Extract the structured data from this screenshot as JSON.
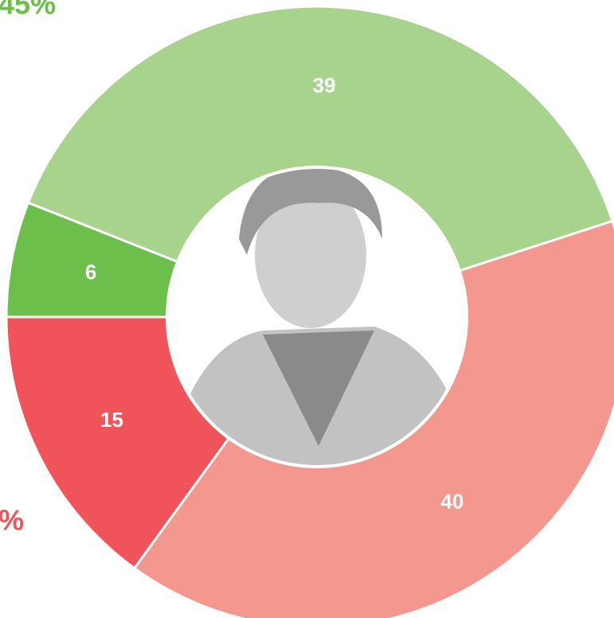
{
  "chart_data": {
    "type": "pie",
    "categories": [
      null,
      null,
      null,
      null
    ],
    "values": [
      40,
      15,
      6,
      39
    ],
    "colors": [
      "#f4978e",
      "#f0545a",
      "#6cbf4a",
      "#a8d38c"
    ],
    "donut": true,
    "start_angle": 72,
    "annotations": [
      {
        "text": "45%",
        "color": "#6cbf4a"
      },
      {
        "text": "%",
        "color": "#f0545a"
      }
    ]
  }
}
